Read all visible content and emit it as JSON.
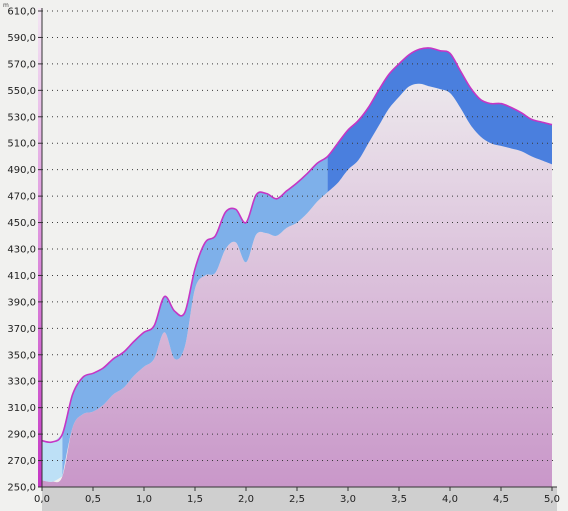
{
  "chart_data": {
    "type": "area",
    "title": "",
    "xlabel": "",
    "ylabel": "",
    "unit_label": "m",
    "xlim": [
      0,
      5.0
    ],
    "ylim": [
      250,
      610
    ],
    "x_ticks": [
      0,
      0.5,
      1.0,
      1.5,
      2.0,
      2.5,
      3.0,
      3.5,
      4.0,
      4.5,
      5.0
    ],
    "x_tick_labels": [
      "0,0",
      "0,5",
      "1,0",
      "1,5",
      "2,0",
      "2,5",
      "3,0",
      "3,5",
      "4,0",
      "4,5",
      "5,0"
    ],
    "y_ticks": [
      250,
      270,
      290,
      310,
      330,
      350,
      370,
      390,
      410,
      430,
      450,
      470,
      490,
      510,
      530,
      550,
      570,
      590,
      610
    ],
    "y_tick_labels": [
      "250,0",
      "270,0",
      "290,0",
      "310,0",
      "330,0",
      "350,0",
      "370,0",
      "390,0",
      "410,0",
      "430,0",
      "450,0",
      "470,0",
      "490,0",
      "510,0",
      "530,0",
      "550,0",
      "570,0",
      "590,0",
      "610,0"
    ],
    "grid": true,
    "x": [
      0,
      0.1,
      0.2,
      0.3,
      0.4,
      0.5,
      0.6,
      0.7,
      0.8,
      0.9,
      1.0,
      1.1,
      1.2,
      1.3,
      1.4,
      1.5,
      1.6,
      1.7,
      1.8,
      1.9,
      2.0,
      2.1,
      2.2,
      2.3,
      2.4,
      2.5,
      2.6,
      2.7,
      2.8,
      2.9,
      3.0,
      3.1,
      3.2,
      3.3,
      3.4,
      3.5,
      3.6,
      3.7,
      3.8,
      3.9,
      4.0,
      4.1,
      4.2,
      4.3,
      4.4,
      4.5,
      4.6,
      4.7,
      4.8,
      4.9,
      5.0
    ],
    "series": [
      {
        "values": [
          285,
          284,
          290,
          320,
          333,
          336,
          340,
          347,
          352,
          360,
          367,
          372,
          394,
          383,
          382,
          415,
          435,
          440,
          458,
          460,
          450,
          471,
          472,
          468,
          474,
          480,
          487,
          495,
          500,
          510,
          520,
          527,
          537,
          550,
          562,
          570,
          577,
          581,
          582,
          580,
          578,
          565,
          552,
          543,
          540,
          540,
          537,
          533,
          528,
          526,
          524
        ]
      },
      {
        "values": [
          255,
          254,
          258,
          295,
          305,
          307,
          312,
          320,
          325,
          334,
          341,
          347,
          367,
          347,
          356,
          400,
          410,
          412,
          430,
          435,
          420,
          441,
          442,
          440,
          446,
          450,
          457,
          466,
          473,
          480,
          490,
          497,
          510,
          523,
          536,
          545,
          553,
          555,
          553,
          551,
          548,
          537,
          524,
          515,
          510,
          508,
          506,
          504,
          500,
          497,
          494
        ]
      }
    ],
    "colors": {
      "fill_top": "#ece7ec",
      "fill_bottom": "#c997c9",
      "band_light": "#bde0f6",
      "band_mid": "#7eb0ea",
      "band_dark": "#4a7fde",
      "outline": "#c536c5",
      "axis_accent": "#c536c5",
      "grid": "#3a3a3a"
    }
  }
}
